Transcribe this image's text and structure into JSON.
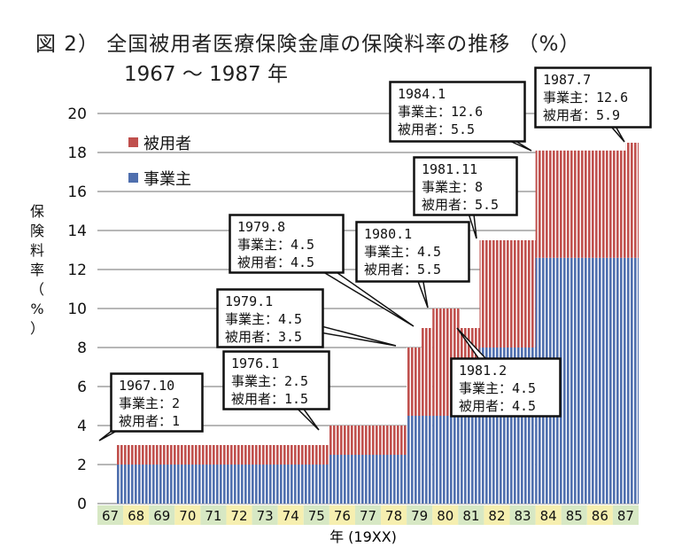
{
  "title_line1": "図 2） 全国被用者医療保険金庫の保険料率の推移 （%）",
  "title_line2": "1967 〜 1987 年",
  "chart_data": {
    "type": "bar",
    "stacked": true,
    "xlabel": "年 (19XX)",
    "ylabel": "保険料率（%）",
    "ylim": [
      0,
      20
    ],
    "yticks": [
      0,
      2,
      4,
      6,
      8,
      10,
      12,
      14,
      16,
      18,
      20
    ],
    "x_ticks": [
      "67",
      "68",
      "69",
      "70",
      "71",
      "72",
      "73",
      "74",
      "75",
      "76",
      "77",
      "78",
      "79",
      "80",
      "81",
      "82",
      "83",
      "84",
      "85",
      "86",
      "87"
    ],
    "legend": [
      {
        "name": "被用者",
        "color": "#c0504d"
      },
      {
        "name": "事業主",
        "color": "#4f6fae"
      }
    ],
    "series": [
      {
        "name": "事業主",
        "color": "#4f6fae"
      },
      {
        "name": "被用者",
        "color": "#c0504d"
      }
    ],
    "steps": [
      {
        "start": 1967.75,
        "employer": 2,
        "employee": 1
      },
      {
        "start": 1976.0,
        "employer": 2.5,
        "employee": 1.5
      },
      {
        "start": 1979.0,
        "employer": 4.5,
        "employee": 3.5
      },
      {
        "start": 1979.58,
        "employer": 4.5,
        "employee": 4.5
      },
      {
        "start": 1980.0,
        "employer": 4.5,
        "employee": 5.5
      },
      {
        "start": 1981.08,
        "employer": 4.5,
        "employee": 4.5
      },
      {
        "start": 1981.83,
        "employer": 8,
        "employee": 5.5
      },
      {
        "start": 1984.0,
        "employer": 12.6,
        "employee": 5.5
      },
      {
        "start": 1987.5,
        "employer": 12.6,
        "employee": 5.9
      }
    ],
    "x_end": 1988.0,
    "annotations": [
      {
        "lines": [
          "1967.10",
          "事業主：2",
          "被用者：1"
        ]
      },
      {
        "lines": [
          "1976.1",
          "事業主：2.5",
          "被用者：1.5"
        ]
      },
      {
        "lines": [
          "1979.1",
          "事業主：4.5",
          "被用者：3.5"
        ]
      },
      {
        "lines": [
          "1979.8",
          "事業主：4.5",
          "被用者：4.5"
        ]
      },
      {
        "lines": [
          "1980.1",
          "事業主：4.5",
          "被用者：5.5"
        ]
      },
      {
        "lines": [
          "1981.2",
          "事業主：4.5",
          "被用者：4.5"
        ]
      },
      {
        "lines": [
          "1981.11",
          "事業主：8",
          "被用者：5.5"
        ]
      },
      {
        "lines": [
          "1984.1",
          "事業主：12.6",
          "被用者：5.5"
        ]
      },
      {
        "lines": [
          "1987.7",
          "事業主：12.6",
          "被用者：5.9"
        ]
      }
    ]
  }
}
